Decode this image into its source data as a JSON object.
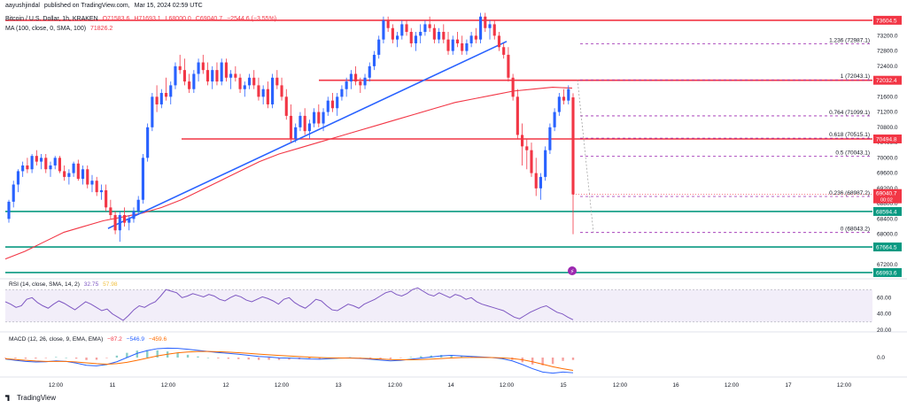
{
  "header": {
    "user": "aayushjindal",
    "published_prefix": "published on TradingView.com,",
    "published_date": "Mar 15, 2024 02:59 UTC",
    "pair": "Bitcoin / U.S. Dollar, 1h, KRAKEN",
    "ohlc": [
      "O71583.6",
      "H71693.1",
      "L68000.0",
      "C69040.7",
      "−2544.6 (−3.55%)"
    ],
    "ma_label": "MA (100, close, 0, SMA, 100)",
    "ma_value": "71826.2"
  },
  "footer": {
    "brand": "TradingView"
  },
  "colors": {
    "up": "#2962ff",
    "down": "#f23645",
    "ma": "#f23645",
    "trend": "#2962ff",
    "support": "#089981",
    "resistance": "#f23645",
    "fib": "#9c27b0",
    "rsi": "#7e57c2",
    "macd": "#2962ff",
    "signal": "#ff6d00"
  },
  "chart_data": {
    "type": "candlestick",
    "title": "Bitcoin / U.S. Dollar, 1h, KRAKEN",
    "x_ticks": [
      "12:00",
      "11",
      "12:00",
      "12",
      "12:00",
      "13",
      "12:00",
      "14",
      "12:00",
      "15",
      "12:00",
      "16",
      "12:00",
      "17",
      "12:00"
    ],
    "y_ticks": [
      67200,
      67600,
      68000,
      68400,
      68800,
      69200,
      69600,
      70000,
      70400,
      70800,
      71200,
      71600,
      72000,
      72400,
      72800,
      73200,
      73600
    ],
    "ylim": [
      66900,
      73950
    ],
    "currency": "USD",
    "candles_ohlc": [
      [
        68400,
        68900,
        68300,
        68850
      ],
      [
        68850,
        69400,
        68700,
        69300
      ],
      [
        69300,
        69700,
        69100,
        69650
      ],
      [
        69650,
        69900,
        69500,
        69800
      ],
      [
        69800,
        70000,
        69600,
        69700
      ],
      [
        69700,
        70100,
        69600,
        70050
      ],
      [
        70050,
        70200,
        69800,
        69900
      ],
      [
        69900,
        70100,
        69700,
        70000
      ],
      [
        70000,
        70100,
        69600,
        69700
      ],
      [
        69700,
        69900,
        69500,
        69800
      ],
      [
        69800,
        70050,
        69700,
        70000
      ],
      [
        70000,
        70050,
        69600,
        69650
      ],
      [
        69650,
        69800,
        69400,
        69500
      ],
      [
        69500,
        69700,
        69300,
        69600
      ],
      [
        69600,
        69900,
        69500,
        69850
      ],
      [
        69850,
        69950,
        69400,
        69450
      ],
      [
        69450,
        69800,
        69300,
        69700
      ],
      [
        69700,
        69800,
        69200,
        69300
      ],
      [
        69300,
        69550,
        69100,
        69400
      ],
      [
        69400,
        69500,
        69000,
        69100
      ],
      [
        69100,
        69300,
        68900,
        69150
      ],
      [
        69150,
        69300,
        68600,
        68700
      ],
      [
        68700,
        68900,
        68400,
        68500
      ],
      [
        68500,
        68600,
        68000,
        68100
      ],
      [
        68100,
        68600,
        67800,
        68500
      ],
      [
        68500,
        68700,
        68200,
        68300
      ],
      [
        68300,
        68500,
        68100,
        68400
      ],
      [
        68400,
        68700,
        68300,
        68600
      ],
      [
        68600,
        69000,
        68500,
        68900
      ],
      [
        68900,
        70100,
        68800,
        70000
      ],
      [
        70000,
        70900,
        69900,
        70800
      ],
      [
        70800,
        71700,
        70700,
        71600
      ],
      [
        71600,
        71900,
        71200,
        71400
      ],
      [
        71400,
        71800,
        71300,
        71700
      ],
      [
        71700,
        72100,
        71500,
        71600
      ],
      [
        71600,
        72000,
        71400,
        71900
      ],
      [
        71900,
        72500,
        71800,
        72400
      ],
      [
        72400,
        72700,
        72200,
        72300
      ],
      [
        72300,
        72600,
        71900,
        72000
      ],
      [
        72000,
        72200,
        71700,
        71800
      ],
      [
        71800,
        72300,
        71700,
        72200
      ],
      [
        72200,
        72600,
        72000,
        72500
      ],
      [
        72500,
        72700,
        72200,
        72300
      ],
      [
        72300,
        72500,
        71900,
        72000
      ],
      [
        72000,
        72400,
        71800,
        72300
      ],
      [
        72300,
        72500,
        71900,
        72000
      ],
      [
        72000,
        72600,
        71900,
        72500
      ],
      [
        72500,
        72600,
        72000,
        72100
      ],
      [
        72100,
        72300,
        71800,
        72200
      ],
      [
        72200,
        72400,
        72000,
        72100
      ],
      [
        72100,
        72200,
        71700,
        71800
      ],
      [
        71800,
        72000,
        71600,
        71900
      ],
      [
        71900,
        72200,
        71800,
        72100
      ],
      [
        72100,
        72300,
        71800,
        71900
      ],
      [
        71900,
        72100,
        71500,
        71600
      ],
      [
        71600,
        71900,
        71400,
        71800
      ],
      [
        71800,
        72000,
        71300,
        71400
      ],
      [
        71400,
        72200,
        71300,
        72100
      ],
      [
        72100,
        72300,
        71800,
        71900
      ],
      [
        71900,
        72100,
        71500,
        71600
      ],
      [
        71600,
        71800,
        71000,
        71100
      ],
      [
        71100,
        71400,
        70400,
        70500
      ],
      [
        70500,
        70900,
        70400,
        70800
      ],
      [
        70800,
        71200,
        70700,
        71100
      ],
      [
        71100,
        71300,
        70600,
        70700
      ],
      [
        70700,
        71000,
        70500,
        70900
      ],
      [
        70900,
        71300,
        70800,
        71200
      ],
      [
        71200,
        71400,
        70800,
        70900
      ],
      [
        70900,
        71300,
        70700,
        71200
      ],
      [
        71200,
        71600,
        71100,
        71500
      ],
      [
        71500,
        71700,
        71200,
        71300
      ],
      [
        71300,
        71700,
        71100,
        71600
      ],
      [
        71600,
        71900,
        71500,
        71800
      ],
      [
        71800,
        72100,
        71600,
        72000
      ],
      [
        72000,
        72300,
        71800,
        72200
      ],
      [
        72200,
        72400,
        71900,
        72000
      ],
      [
        72000,
        72100,
        71700,
        71900
      ],
      [
        71900,
        72200,
        71800,
        72100
      ],
      [
        72100,
        72500,
        72000,
        72400
      ],
      [
        72400,
        72800,
        72300,
        72700
      ],
      [
        72700,
        73200,
        72600,
        73100
      ],
      [
        73100,
        73700,
        73000,
        73600
      ],
      [
        73600,
        73700,
        73300,
        73400
      ],
      [
        73400,
        73500,
        73000,
        73100
      ],
      [
        73100,
        73300,
        72900,
        73200
      ],
      [
        73200,
        73600,
        73100,
        73500
      ],
      [
        73500,
        73600,
        73200,
        73300
      ],
      [
        73300,
        73400,
        72900,
        73000
      ],
      [
        73000,
        73300,
        72800,
        73200
      ],
      [
        73200,
        73500,
        73000,
        73300
      ],
      [
        73300,
        73600,
        73200,
        73500
      ],
      [
        73500,
        73700,
        73300,
        73400
      ],
      [
        73400,
        73500,
        73000,
        73100
      ],
      [
        73100,
        73400,
        73000,
        73300
      ],
      [
        73300,
        73500,
        73000,
        73100
      ],
      [
        73100,
        73300,
        72700,
        72800
      ],
      [
        72800,
        73200,
        72700,
        73100
      ],
      [
        73100,
        73300,
        72900,
        73000
      ],
      [
        73000,
        73200,
        72700,
        72800
      ],
      [
        72800,
        73100,
        72700,
        73000
      ],
      [
        73000,
        73300,
        72900,
        73200
      ],
      [
        73200,
        73400,
        73000,
        73100
      ],
      [
        73100,
        73800,
        73000,
        73700
      ],
      [
        73700,
        73800,
        73300,
        73400
      ],
      [
        73400,
        73600,
        73100,
        73500
      ],
      [
        73500,
        73600,
        73100,
        73200
      ],
      [
        73200,
        73300,
        72800,
        72900
      ],
      [
        72900,
        73000,
        72600,
        72700
      ],
      [
        72700,
        72900,
        72000,
        72100
      ],
      [
        72100,
        72200,
        71500,
        71600
      ],
      [
        71600,
        71800,
        70500,
        70600
      ],
      [
        70600,
        70900,
        69800,
        70300
      ],
      [
        70300,
        70500,
        69700,
        70200
      ],
      [
        70200,
        70400,
        69500,
        69600
      ],
      [
        69600,
        70000,
        69000,
        69200
      ],
      [
        69200,
        69600,
        68900,
        69500
      ],
      [
        69500,
        70300,
        69400,
        70200
      ],
      [
        70200,
        70900,
        70100,
        70800
      ],
      [
        70800,
        71300,
        70700,
        71200
      ],
      [
        71200,
        71700,
        71100,
        71600
      ],
      [
        71600,
        71800,
        71400,
        71500
      ],
      [
        71500,
        71900,
        71400,
        71800
      ],
      [
        71583.6,
        71693.1,
        68000,
        69040.7
      ]
    ],
    "ma": {
      "label": "MA (100, close, 0, SMA, 100)",
      "values": [
        67350,
        67550,
        67800,
        68050,
        68200,
        68350,
        68450,
        68550,
        68700,
        68900,
        69150,
        69400,
        69650,
        69900,
        70100,
        70250,
        70400,
        70550,
        70700,
        70850,
        71000,
        71150,
        71300,
        71450,
        71550,
        71650,
        71750,
        71800,
        71850,
        71826.2
      ]
    },
    "trendline": {
      "from": [
        68150,
        0.07
      ],
      "to": [
        73050,
        0.695
      ]
    },
    "horizontal_levels": [
      {
        "price": 73604.5,
        "label": "73604.5",
        "kind": "resistance"
      },
      {
        "price": 72032.4,
        "label": "72032.4",
        "kind": "resistance"
      },
      {
        "price": 70494.8,
        "label": "70494.8",
        "kind": "resistance"
      },
      {
        "price": 68594.4,
        "label": "68594.4",
        "kind": "support"
      },
      {
        "price": 67664.5,
        "label": "67664.5",
        "kind": "support"
      },
      {
        "price": 66993.6,
        "label": "66993.6",
        "kind": "support"
      }
    ],
    "fibonacci": [
      {
        "ratio": "1.236",
        "price": "72987.1"
      },
      {
        "ratio": "1",
        "price": "72043.1"
      },
      {
        "ratio": "0.764",
        "price": "71099.1"
      },
      {
        "ratio": "0.618",
        "price": "70515.1"
      },
      {
        "ratio": "0.5",
        "price": "70043.1"
      },
      {
        "ratio": "0.236",
        "price": "68987.2"
      },
      {
        "ratio": "0",
        "price": "68043.2"
      }
    ],
    "last_price": {
      "value": "69040.7",
      "countdown": "00:02"
    },
    "rsi": {
      "label": "RSI (14, close, SMA, 14, 2)",
      "value": "32.75",
      "value2": "57.98",
      "ticks": [
        60,
        40,
        20
      ],
      "band": [
        30,
        70
      ],
      "values": [
        55,
        52,
        48,
        50,
        58,
        60,
        54,
        50,
        47,
        52,
        56,
        53,
        49,
        45,
        50,
        55,
        52,
        48,
        44,
        46,
        40,
        36,
        32,
        38,
        45,
        50,
        48,
        52,
        55,
        62,
        70,
        68,
        66,
        60,
        62,
        65,
        63,
        61,
        64,
        62,
        58,
        56,
        60,
        63,
        61,
        57,
        55,
        58,
        61,
        59,
        56,
        52,
        58,
        60,
        54,
        50,
        47,
        52,
        58,
        56,
        50,
        45,
        44,
        48,
        52,
        50,
        47,
        52,
        55,
        58,
        62,
        66,
        68,
        64,
        62,
        65,
        70,
        72,
        68,
        64,
        62,
        66,
        63,
        60,
        64,
        62,
        58,
        60,
        55,
        52,
        50,
        48,
        46,
        44,
        40,
        36,
        34,
        38,
        42,
        45,
        48,
        50,
        46,
        42,
        40,
        36,
        32.75
      ]
    },
    "macd": {
      "label": "MACD (12, 26, close, 9, EMA, EMA)",
      "values_label": [
        "−87.2",
        "−546.9",
        "−459.6"
      ],
      "ticks": [
        "0.0"
      ],
      "macd": [
        -50,
        -100,
        -140,
        -160,
        -150,
        -120,
        -140,
        -200,
        -280,
        -300,
        -250,
        -150,
        0,
        150,
        250,
        320,
        340,
        330,
        300,
        260,
        220,
        180,
        150,
        120,
        80,
        40,
        20,
        -10,
        -20,
        -30,
        -50,
        -60,
        -40,
        -20,
        -10,
        -30,
        -60,
        -90,
        -120,
        -100,
        -60,
        -20,
        20,
        60,
        80,
        60,
        40,
        20,
        0,
        -40,
        -120,
        -250,
        -400,
        -520,
        -560,
        -520,
        -546.9
      ],
      "signal": [
        -40,
        -70,
        -100,
        -125,
        -140,
        -140,
        -140,
        -160,
        -190,
        -220,
        -240,
        -220,
        -170,
        -100,
        -20,
        60,
        120,
        170,
        200,
        220,
        220,
        210,
        195,
        175,
        150,
        125,
        100,
        75,
        55,
        35,
        15,
        0,
        -10,
        -15,
        -20,
        -25,
        -35,
        -50,
        -70,
        -80,
        -80,
        -70,
        -55,
        -35,
        -15,
        0,
        5,
        5,
        0,
        -10,
        -35,
        -80,
        -150,
        -240,
        -330,
        -400,
        -459.6
      ]
    }
  }
}
